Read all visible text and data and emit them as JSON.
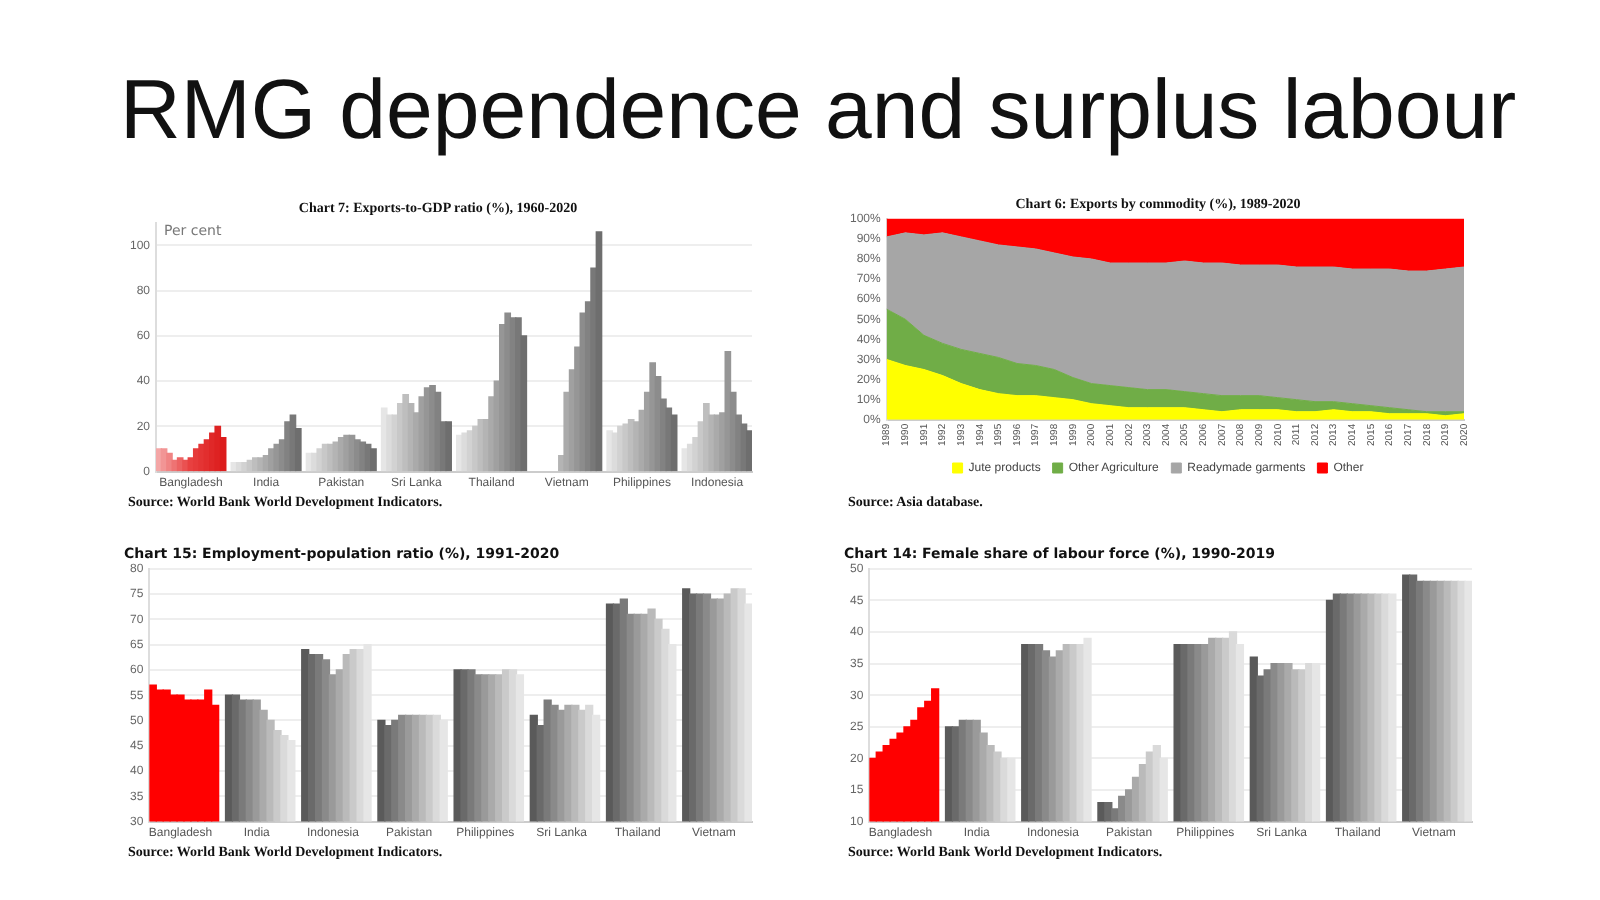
{
  "chart_data": [
    {
      "type": "bar",
      "title": "RMG dependence and surplus labour",
      "subtitle": "Chart 7: Exports-to-GDP ratio (%), 1960-2020",
      "ylabel": "Per cent",
      "categories": [
        null,
        null,
        null,
        null,
        null,
        null,
        "Bangladesh",
        null,
        null,
        null,
        null,
        null,
        null,
        null,
        null,
        null,
        null,
        null,
        null,
        null,
        "India",
        null,
        null,
        null,
        null,
        null,
        null,
        null,
        null,
        null,
        null,
        null,
        null,
        null,
        "Pakistan",
        null,
        null,
        null,
        null,
        null,
        null,
        null,
        null,
        null,
        null,
        null,
        null,
        null,
        "Sri Lanka",
        null,
        null,
        null,
        null,
        null,
        null,
        null,
        null,
        null,
        null,
        null,
        null,
        null,
        "Thailand",
        null,
        null,
        null,
        null,
        null,
        null,
        null,
        null,
        null,
        null,
        null,
        null,
        null,
        "Vietnam",
        null,
        null,
        null,
        null,
        null,
        null,
        null,
        null,
        null,
        null,
        null,
        null,
        null,
        "Philippines",
        null,
        null,
        null,
        null,
        null,
        null,
        null,
        null,
        null,
        null,
        null,
        null,
        null,
        "Indonesia",
        null,
        null,
        null,
        null,
        null,
        null
      ],
      "values": [
        10,
        10,
        8,
        5,
        6,
        5,
        6,
        10,
        12,
        14,
        17,
        20,
        15,
        null,
        4,
        4,
        4,
        5,
        6,
        6,
        7,
        10,
        12,
        14,
        22,
        25,
        19,
        null,
        8,
        8,
        10,
        12,
        12,
        13,
        15,
        16,
        16,
        14,
        13,
        12,
        10,
        null,
        28,
        25,
        25,
        30,
        34,
        30,
        26,
        33,
        37,
        38,
        35,
        22,
        22,
        null,
        16,
        17,
        18,
        20,
        23,
        23,
        33,
        40,
        65,
        70,
        68,
        68,
        60,
        null,
        null,
        null,
        null,
        null,
        null,
        7,
        35,
        45,
        55,
        70,
        75,
        90,
        106,
        null,
        18,
        17,
        20,
        21,
        23,
        22,
        27,
        35,
        48,
        42,
        32,
        28,
        25,
        null,
        10,
        12,
        15,
        22,
        30,
        25,
        25,
        26,
        53,
        35,
        25,
        21,
        18
      ],
      "colors": [
        "#f4a6a6",
        "#f29595",
        "#f08484",
        "#ee7373",
        "#ec6262",
        "#ea5151",
        "#e84040",
        "#e63a3a",
        "#e43434",
        "#e22e2e",
        "#e02828",
        "#de2222",
        "#dc1c1c",
        null,
        "#e6e6e6",
        "#dcdcdc",
        "#d2d2d2",
        "#c8c8c8",
        "#bebebe",
        "#b4b4b4",
        "#aaaaaa",
        "#a0a0a0",
        "#969696",
        "#8c8c8c",
        "#828282",
        "#787878",
        "#6e6e6e",
        null,
        "#e6e6e6",
        "#dcdcdc",
        "#d2d2d2",
        "#c8c8c8",
        "#bebebe",
        "#b4b4b4",
        "#aaaaaa",
        "#a0a0a0",
        "#969696",
        "#8c8c8c",
        "#828282",
        "#787878",
        "#6e6e6e",
        null,
        "#e6e6e6",
        "#dcdcdc",
        "#d2d2d2",
        "#c8c8c8",
        "#bebebe",
        "#b4b4b4",
        "#aaaaaa",
        "#a0a0a0",
        "#969696",
        "#8c8c8c",
        "#828282",
        "#787878",
        "#6e6e6e",
        null,
        "#e6e6e6",
        "#dcdcdc",
        "#d2d2d2",
        "#c8c8c8",
        "#bebebe",
        "#b4b4b4",
        "#aaaaaa",
        "#a0a0a0",
        "#969696",
        "#8c8c8c",
        "#828282",
        "#787878",
        "#6e6e6e",
        null,
        "#e6e6e6",
        "#dcdcdc",
        "#d2d2d2",
        "#c8c8c8",
        "#bebebe",
        "#b4b4b4",
        "#aaaaaa",
        "#a0a0a0",
        "#969696",
        "#8c8c8c",
        "#828282",
        "#787878",
        "#6e6e6e",
        null,
        "#e6e6e6",
        "#dcdcdc",
        "#d2d2d2",
        "#c8c8c8",
        "#bebebe",
        "#b4b4b4",
        "#aaaaaa",
        "#a0a0a0",
        "#969696",
        "#8c8c8c",
        "#828282",
        "#787878",
        "#6e6e6e",
        null,
        "#e6e6e6",
        "#dcdcdc",
        "#d2d2d2",
        "#c8c8c8",
        "#bebebe",
        "#b4b4b4",
        "#aaaaaa",
        "#a0a0a0",
        "#969696",
        "#8c8c8c",
        "#828282",
        "#787878",
        "#6e6e6e"
      ],
      "ylim": [
        0,
        110
      ],
      "yticks": [
        0,
        20,
        40,
        60,
        80,
        100
      ],
      "grid": "y",
      "annotations": [
        "Source: World Bank World Development Indicators."
      ]
    },
    {
      "type": "area",
      "title": "Chart 6: Exports by commodity (%), 1989-2020",
      "stacked": true,
      "marker": "none",
      "legend": "bottom",
      "categories": [
        "1989",
        "1990",
        "1991",
        "1992",
        "1993",
        "1994",
        "1995",
        "1996",
        "1997",
        "1998",
        "1999",
        "2000",
        "2001",
        "2002",
        "2003",
        "2004",
        "2005",
        "2006",
        "2007",
        "2008",
        "2009",
        "2010",
        "2011",
        "2012",
        "2013",
        "2014",
        "2015",
        "2016",
        "2017",
        "2018",
        "2019",
        "2020"
      ],
      "series": [
        {
          "name": "Jute products",
          "color": "#ffff00",
          "values": [
            30,
            27,
            25,
            22,
            18,
            15,
            13,
            12,
            12,
            11,
            10,
            8,
            7,
            6,
            6,
            6,
            6,
            5,
            4,
            5,
            5,
            5,
            4,
            4,
            5,
            4,
            4,
            3,
            3,
            3,
            2,
            3
          ]
        },
        {
          "name": "Other Agriculture",
          "color": "#70ad47",
          "values": [
            25,
            23,
            17,
            16,
            17,
            18,
            18,
            16,
            15,
            14,
            11,
            10,
            10,
            10,
            9,
            9,
            8,
            8,
            8,
            7,
            7,
            6,
            6,
            5,
            4,
            4,
            3,
            3,
            2,
            1,
            2,
            1
          ]
        },
        {
          "name": "Readymade garments",
          "color": "#a6a6a6",
          "values": [
            36,
            43,
            50,
            55,
            56,
            56,
            56,
            58,
            58,
            58,
            60,
            62,
            61,
            62,
            63,
            63,
            65,
            65,
            66,
            65,
            65,
            66,
            66,
            67,
            67,
            67,
            68,
            69,
            69,
            70,
            71,
            72
          ]
        },
        {
          "name": "Other",
          "color": "#ff0000",
          "values": [
            9,
            7,
            8,
            7,
            9,
            11,
            13,
            14,
            15,
            17,
            19,
            20,
            22,
            22,
            22,
            22,
            21,
            22,
            22,
            23,
            23,
            23,
            24,
            24,
            24,
            25,
            25,
            25,
            26,
            26,
            25,
            24
          ]
        }
      ],
      "ylim": [
        0,
        100
      ],
      "yticks": [
        {
          "value": 0,
          "label": "0%"
        },
        {
          "value": 10,
          "label": "10%"
        },
        {
          "value": 20,
          "label": "20%"
        },
        {
          "value": 30,
          "label": "30%"
        },
        {
          "value": 40,
          "label": "40%"
        },
        {
          "value": 50,
          "label": "50%"
        },
        {
          "value": 60,
          "label": "60%"
        },
        {
          "value": 70,
          "label": "70%"
        },
        {
          "value": 80,
          "label": "80%"
        },
        {
          "value": 90,
          "label": "90%"
        },
        {
          "value": 100,
          "label": "100%"
        }
      ],
      "annotations": [
        "Source: Asia database."
      ]
    },
    {
      "type": "bar",
      "title": "Chart 15: Employment-population ratio (%), 1991-2020",
      "categories": [
        null,
        null,
        null,
        null,
        "Bangladesh",
        null,
        null,
        null,
        null,
        null,
        null,
        null,
        null,
        null,
        null,
        "India",
        null,
        null,
        null,
        null,
        null,
        null,
        null,
        null,
        null,
        null,
        "Indonesia",
        null,
        null,
        null,
        null,
        null,
        null,
        null,
        null,
        null,
        null,
        "Pakistan",
        null,
        null,
        null,
        null,
        null,
        null,
        null,
        null,
        null,
        null,
        "Philippines",
        null,
        null,
        null,
        null,
        null,
        null,
        null,
        null,
        null,
        null,
        "Sri Lanka",
        null,
        null,
        null,
        null,
        null,
        null,
        null,
        null,
        null,
        null,
        "Thailand",
        null,
        null,
        null,
        null,
        null,
        null,
        null,
        null,
        null,
        null,
        "Vietnam",
        null,
        null,
        null,
        null,
        null
      ],
      "values": [
        57,
        56,
        56,
        55,
        55,
        54,
        54,
        54,
        56,
        53,
        null,
        55,
        55,
        54,
        54,
        54,
        52,
        50,
        48,
        47,
        46,
        null,
        64,
        63,
        63,
        62,
        59,
        60,
        63,
        64,
        64,
        65,
        null,
        50,
        49,
        50,
        51,
        51,
        51,
        51,
        51,
        51,
        50,
        null,
        60,
        60,
        60,
        59,
        59,
        59,
        59,
        60,
        60,
        59,
        null,
        51,
        49,
        54,
        53,
        52,
        53,
        53,
        52,
        53,
        51,
        null,
        73,
        73,
        74,
        71,
        71,
        71,
        72,
        70,
        68,
        65,
        null,
        76,
        75,
        75,
        75,
        74,
        74,
        75,
        76,
        76,
        73
      ],
      "colors": [
        "#ff0000",
        "#ff0000",
        "#ff0000",
        "#ff0000",
        "#ff0000",
        "#ff0000",
        "#ff0000",
        "#ff0000",
        "#ff0000",
        "#ff0000",
        null,
        "#5a5a5a",
        "#6a6a6a",
        "#7a7a7a",
        "#8a8a8a",
        "#9a9a9a",
        "#aaaaaa",
        "#bababa",
        "#cacaca",
        "#dadada",
        "#e6e6e6",
        null,
        "#5a5a5a",
        "#6a6a6a",
        "#7a7a7a",
        "#8a8a8a",
        "#9a9a9a",
        "#aaaaaa",
        "#bababa",
        "#cacaca",
        "#dadada",
        "#e6e6e6",
        null,
        "#5a5a5a",
        "#6a6a6a",
        "#7a7a7a",
        "#8a8a8a",
        "#9a9a9a",
        "#aaaaaa",
        "#bababa",
        "#cacaca",
        "#dadada",
        "#e6e6e6",
        null,
        "#5a5a5a",
        "#6a6a6a",
        "#7a7a7a",
        "#8a8a8a",
        "#9a9a9a",
        "#aaaaaa",
        "#bababa",
        "#cacaca",
        "#dadada",
        "#e6e6e6",
        null,
        "#5a5a5a",
        "#6a6a6a",
        "#7a7a7a",
        "#8a8a8a",
        "#9a9a9a",
        "#aaaaaa",
        "#bababa",
        "#cacaca",
        "#dadada",
        "#e6e6e6",
        null,
        "#5a5a5a",
        "#6a6a6a",
        "#7a7a7a",
        "#8a8a8a",
        "#9a9a9a",
        "#aaaaaa",
        "#bababa",
        "#cacaca",
        "#dadada",
        "#e6e6e6",
        null,
        "#5a5a5a",
        "#6a6a6a",
        "#7a7a7a",
        "#8a8a8a",
        "#9a9a9a",
        "#aaaaaa",
        "#bababa",
        "#cacaca",
        "#dadada",
        "#e6e6e6"
      ],
      "ylim": [
        30,
        80
      ],
      "yticks": [
        30,
        35,
        40,
        45,
        50,
        55,
        60,
        65,
        70,
        75,
        80
      ],
      "grid": "y",
      "annotations": [
        "Source: World Bank World Development Indicators."
      ]
    },
    {
      "type": "bar",
      "title": "Chart 14: Female share of labour force (%), 1990-2019",
      "categories": [
        null,
        null,
        null,
        null,
        "Bangladesh",
        null,
        null,
        null,
        null,
        null,
        null,
        null,
        null,
        null,
        null,
        "India",
        null,
        null,
        null,
        null,
        null,
        null,
        null,
        null,
        null,
        null,
        "Indonesia",
        null,
        null,
        null,
        null,
        null,
        null,
        null,
        null,
        null,
        null,
        "Pakistan",
        null,
        null,
        null,
        null,
        null,
        null,
        null,
        null,
        null,
        null,
        "Philippines",
        null,
        null,
        null,
        null,
        null,
        null,
        null,
        null,
        null,
        null,
        "Sri Lanka",
        null,
        null,
        null,
        null,
        null,
        null,
        null,
        null,
        null,
        null,
        "Thailand",
        null,
        null,
        null,
        null,
        null,
        null,
        null,
        null,
        null,
        null,
        "Vietnam",
        null,
        null,
        null,
        null,
        null
      ],
      "values": [
        20,
        21,
        22,
        23,
        24,
        25,
        26,
        28,
        29,
        31,
        null,
        25,
        25,
        26,
        26,
        26,
        24,
        22,
        21,
        20,
        20,
        null,
        38,
        38,
        38,
        37,
        36,
        37,
        38,
        38,
        38,
        39,
        null,
        13,
        13,
        12,
        14,
        15,
        17,
        19,
        21,
        22,
        20,
        null,
        38,
        38,
        38,
        38,
        38,
        39,
        39,
        39,
        40,
        38,
        null,
        36,
        33,
        34,
        35,
        35,
        35,
        34,
        34,
        35,
        35,
        null,
        45,
        46,
        46,
        46,
        46,
        46,
        46,
        46,
        46,
        46,
        null,
        49,
        49,
        48,
        48,
        48,
        48,
        48,
        48,
        48,
        48
      ],
      "colors": [
        "#ff0000",
        "#ff0000",
        "#ff0000",
        "#ff0000",
        "#ff0000",
        "#ff0000",
        "#ff0000",
        "#ff0000",
        "#ff0000",
        "#ff0000",
        null,
        "#5a5a5a",
        "#6a6a6a",
        "#7a7a7a",
        "#8a8a8a",
        "#9a9a9a",
        "#aaaaaa",
        "#bababa",
        "#cacaca",
        "#dadada",
        "#e6e6e6",
        null,
        "#5a5a5a",
        "#6a6a6a",
        "#7a7a7a",
        "#8a8a8a",
        "#9a9a9a",
        "#aaaaaa",
        "#bababa",
        "#cacaca",
        "#dadada",
        "#e6e6e6",
        null,
        "#5a5a5a",
        "#6a6a6a",
        "#7a7a7a",
        "#8a8a8a",
        "#9a9a9a",
        "#aaaaaa",
        "#bababa",
        "#cacaca",
        "#dadada",
        "#e6e6e6",
        null,
        "#5a5a5a",
        "#6a6a6a",
        "#7a7a7a",
        "#8a8a8a",
        "#9a9a9a",
        "#aaaaaa",
        "#bababa",
        "#cacaca",
        "#dadada",
        "#e6e6e6",
        null,
        "#5a5a5a",
        "#6a6a6a",
        "#7a7a7a",
        "#8a8a8a",
        "#9a9a9a",
        "#aaaaaa",
        "#bababa",
        "#cacaca",
        "#dadada",
        "#e6e6e6",
        null,
        "#5a5a5a",
        "#6a6a6a",
        "#7a7a7a",
        "#8a8a8a",
        "#9a9a9a",
        "#aaaaaa",
        "#bababa",
        "#cacaca",
        "#dadada",
        "#e6e6e6",
        null,
        "#5a5a5a",
        "#6a6a6a",
        "#7a7a7a",
        "#8a8a8a",
        "#9a9a9a",
        "#aaaaaa",
        "#bababa",
        "#cacaca",
        "#dadada",
        "#e6e6e6"
      ],
      "ylim": [
        10,
        50
      ],
      "yticks": [
        10,
        15,
        20,
        25,
        30,
        35,
        40,
        45,
        50
      ],
      "grid": "y",
      "annotations": [
        "Source: World Bank World Development Indicators."
      ]
    }
  ]
}
